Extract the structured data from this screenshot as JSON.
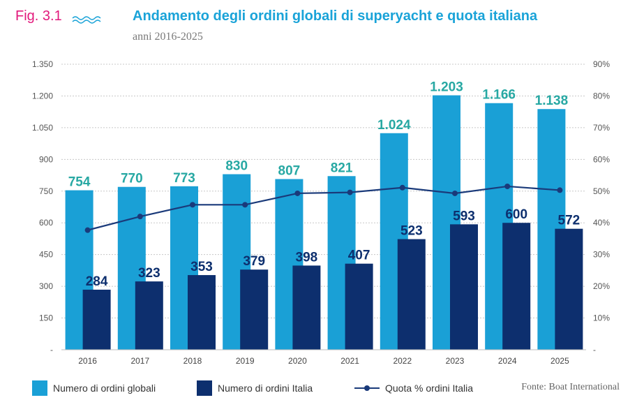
{
  "header": {
    "fig_label": "Fig. 3.1",
    "title": "Andamento degli ordini globali di superyacht e quota italiana",
    "subtitle": "anni 2016-2025"
  },
  "colors": {
    "global_bar": "#1aa0d6",
    "italy_bar": "#0d2f6e",
    "line": "#1a3a7a",
    "global_label": "#27a8a3",
    "italy_label": "#0d2f6e",
    "accent_pink": "#e2197c"
  },
  "legend": {
    "global": "Numero di ordini globali",
    "italy": "Numero di ordini Italia",
    "share": "Quota % ordini Italia",
    "source": "Fonte: Boat International"
  },
  "chart_data": {
    "type": "bar",
    "title": "Andamento degli ordini globali di superyacht e quota italiana",
    "subtitle": "anni 2016-2025",
    "categories": [
      "2016",
      "2017",
      "2018",
      "2019",
      "2020",
      "2021",
      "2022",
      "2023",
      "2024",
      "2025"
    ],
    "series": [
      {
        "name": "Numero di ordini globali",
        "type": "bar",
        "axis": "left",
        "values": [
          754,
          770,
          773,
          830,
          807,
          821,
          1024,
          1203,
          1166,
          1138
        ],
        "labels": [
          "754",
          "770",
          "773",
          "830",
          "807",
          "821",
          "1.024",
          "1.203",
          "1.166",
          "1.138"
        ]
      },
      {
        "name": "Numero di ordini Italia",
        "type": "bar",
        "axis": "left",
        "values": [
          284,
          323,
          353,
          379,
          398,
          407,
          523,
          593,
          600,
          572
        ],
        "labels": [
          "284",
          "323",
          "353",
          "379",
          "398",
          "407",
          "523",
          "593",
          "600",
          "572"
        ]
      },
      {
        "name": "Quota % ordini Italia",
        "type": "line",
        "axis": "right",
        "values": [
          37.7,
          42.0,
          45.7,
          45.7,
          49.3,
          49.6,
          51.1,
          49.3,
          51.5,
          50.3
        ]
      }
    ],
    "y_left": {
      "ylim": [
        0,
        1350
      ],
      "ticks": [
        0,
        150,
        300,
        450,
        600,
        750,
        900,
        1050,
        1200,
        1350
      ],
      "tick_labels": [
        "-",
        "150",
        "300",
        "450",
        "600",
        "750",
        "900",
        "1.050",
        "1.200",
        "1.350"
      ]
    },
    "y_right": {
      "ylim": [
        0,
        90
      ],
      "ticks": [
        0,
        10,
        20,
        30,
        40,
        50,
        60,
        70,
        80,
        90
      ],
      "tick_labels": [
        "-",
        "10%",
        "20%",
        "30%",
        "40%",
        "50%",
        "60%",
        "70%",
        "80%",
        "90%"
      ]
    },
    "grid": true,
    "legend_position": "bottom"
  }
}
